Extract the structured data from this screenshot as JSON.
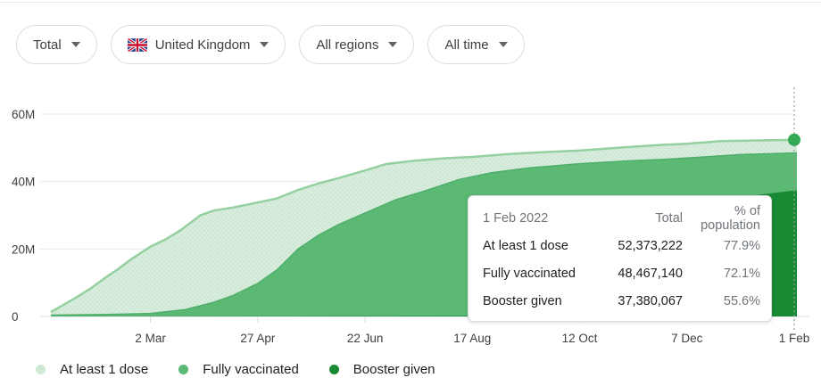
{
  "filters": [
    {
      "label": "Total"
    },
    {
      "label": "United Kingdom",
      "flag": "uk-flag"
    },
    {
      "label": "All regions"
    },
    {
      "label": "All time"
    }
  ],
  "tooltip": {
    "date": "1 Feb 2022",
    "col_total": "Total",
    "col_pct": "% of population",
    "rows": [
      {
        "label": "At least 1 dose",
        "total": "52,373,222",
        "pct": "77.9%"
      },
      {
        "label": "Fully vaccinated",
        "total": "48,467,140",
        "pct": "72.1%"
      },
      {
        "label": "Booster given",
        "total": "37,380,067",
        "pct": "55.6%"
      }
    ]
  },
  "colors": {
    "grid": "#e8eaed",
    "baseline": "#dadce0",
    "tick": "#dadce0",
    "axis_text": "#3c4043",
    "muted_text": "#70757a",
    "cursor_line": "#9aa0a6",
    "marker": "#34a853"
  },
  "chart_data": {
    "type": "area",
    "x_axis_note": "days since chart start; tick labels show dates",
    "x_domain": [
      0,
      388
    ],
    "ylim": [
      0,
      65
    ],
    "yticks": [
      {
        "v": 0,
        "label": "0"
      },
      {
        "v": 20,
        "label": "20M"
      },
      {
        "v": 40,
        "label": "40M"
      },
      {
        "v": 60,
        "label": "60M"
      }
    ],
    "xticks": [
      {
        "day": 52,
        "label": "2 Mar"
      },
      {
        "day": 108,
        "label": "27 Apr"
      },
      {
        "day": 164,
        "label": "22 Jun"
      },
      {
        "day": 220,
        "label": "17 Aug"
      },
      {
        "day": 276,
        "label": "12 Oct"
      },
      {
        "day": 332,
        "label": "7 Dec"
      },
      {
        "day": 388,
        "label": "1 Feb"
      }
    ],
    "series": [
      {
        "name": "At least 1 dose",
        "fill": "#d7ecdc",
        "stroke": "#94d0a0",
        "dot_fill": "#cfe9d6",
        "pattern": true,
        "points": [
          [
            0,
            1.3
          ],
          [
            7,
            3.6
          ],
          [
            14,
            5.9
          ],
          [
            21,
            8.4
          ],
          [
            28,
            11.3
          ],
          [
            35,
            14.0
          ],
          [
            42,
            17.0
          ],
          [
            52,
            20.7
          ],
          [
            60,
            22.9
          ],
          [
            68,
            25.7
          ],
          [
            78,
            30.0
          ],
          [
            85,
            31.4
          ],
          [
            95,
            32.3
          ],
          [
            108,
            33.8
          ],
          [
            118,
            35.0
          ],
          [
            129,
            37.5
          ],
          [
            140,
            39.5
          ],
          [
            150,
            41.0
          ],
          [
            164,
            43.3
          ],
          [
            175,
            45.2
          ],
          [
            190,
            46.2
          ],
          [
            205,
            46.9
          ],
          [
            220,
            47.3
          ],
          [
            240,
            48.2
          ],
          [
            260,
            48.8
          ],
          [
            276,
            49.2
          ],
          [
            300,
            50.2
          ],
          [
            320,
            50.9
          ],
          [
            332,
            51.2
          ],
          [
            350,
            52.0
          ],
          [
            370,
            52.2
          ],
          [
            388,
            52.373
          ]
        ]
      },
      {
        "name": "Fully vaccinated",
        "fill": "#5bb974",
        "stroke": "#4fae6b",
        "dot_fill": "#5bb974",
        "pattern": false,
        "points": [
          [
            0,
            0.4
          ],
          [
            30,
            0.6
          ],
          [
            52,
            0.9
          ],
          [
            70,
            2.0
          ],
          [
            85,
            4.2
          ],
          [
            95,
            6.2
          ],
          [
            108,
            9.8
          ],
          [
            118,
            13.8
          ],
          [
            129,
            20.0
          ],
          [
            140,
            24.2
          ],
          [
            150,
            27.2
          ],
          [
            164,
            30.7
          ],
          [
            180,
            34.6
          ],
          [
            195,
            37.2
          ],
          [
            213,
            40.6
          ],
          [
            230,
            42.6
          ],
          [
            250,
            44.1
          ],
          [
            276,
            45.3
          ],
          [
            300,
            46.1
          ],
          [
            320,
            46.6
          ],
          [
            332,
            47.0
          ],
          [
            360,
            48.0
          ],
          [
            388,
            48.467
          ]
        ]
      },
      {
        "name": "Booster given",
        "fill": "#188a34",
        "stroke": "#188a34",
        "dot_fill": "#188a34",
        "pattern": false,
        "points": [
          [
            0,
            0
          ],
          [
            240,
            0.2
          ],
          [
            255,
            0.7
          ],
          [
            268,
            2.2
          ],
          [
            276,
            3.7
          ],
          [
            290,
            7.5
          ],
          [
            305,
            11.6
          ],
          [
            320,
            16.3
          ],
          [
            332,
            21.3
          ],
          [
            342,
            27.3
          ],
          [
            352,
            33.0
          ],
          [
            360,
            34.9
          ],
          [
            370,
            36.1
          ],
          [
            388,
            37.38
          ]
        ]
      }
    ],
    "marker": {
      "series": "At least 1 dose",
      "day": 388,
      "value_m": 52.373
    }
  }
}
